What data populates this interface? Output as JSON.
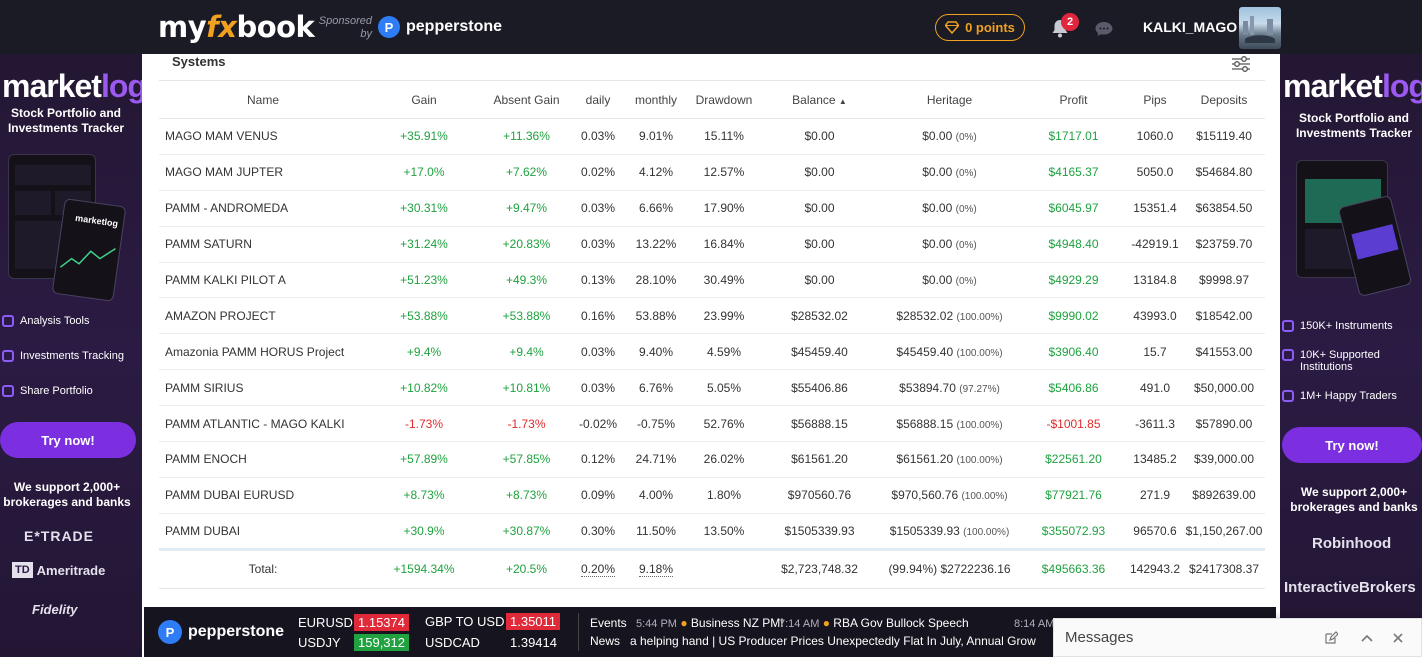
{
  "header": {
    "logo_pre": "my",
    "logo_fx": "fx",
    "logo_post": "book",
    "sponsored_line1": "Sponsored",
    "sponsored_line2": "by",
    "sponsor_name": "pepperstone",
    "sponsor_mark": "P",
    "points_label": "0 points",
    "notification_count": "2",
    "username": "KALKI_MAGO"
  },
  "left_ad": {
    "logo_main": "market",
    "logo_accent": "log",
    "tagline": "Stock Portfolio and Investments Tracker",
    "mock_label": "marketlog",
    "features": [
      "Analysis Tools",
      "Investments Tracking",
      "Share Portfolio"
    ],
    "cta": "Try now!",
    "support": "We support 2,000+ brokerages and banks",
    "brokers": [
      "E*TRADE",
      "Ameritrade",
      "Fidelity"
    ],
    "broker_badge": "TD"
  },
  "right_ad": {
    "logo_main": "market",
    "logo_accent": "log",
    "tagline": "Stock Portfolio and Investments Tracker",
    "features": [
      "150K+ Instruments",
      "10K+ Supported Institutions",
      "1M+ Happy Traders"
    ],
    "cta": "Try now!",
    "support": "We support 2,000+ brokerages and banks",
    "brokers": [
      "Robinhood",
      "InteractiveBrokers"
    ]
  },
  "systems": {
    "title": "Systems",
    "columns": [
      "Name",
      "Gain",
      "Absent Gain",
      "daily",
      "monthly",
      "Drawdown",
      "Balance",
      "Heritage",
      "Profit",
      "Pips",
      "Deposits"
    ],
    "sort_indicator": "▲",
    "rows": [
      {
        "name": "MAGO MAM VENUS",
        "gain": "+35.91%",
        "absent_gain": "+11.36%",
        "daily": "0.03%",
        "monthly": "9.01%",
        "drawdown": "15.11%",
        "balance": "$0.00",
        "heritage": "$0.00",
        "heritage_pct": "(0%)",
        "profit": "$1717.01",
        "pips": "1060.0",
        "deposits": "$15119.40",
        "neg": false
      },
      {
        "name": "MAGO MAM JUPTER",
        "gain": "+17.0%",
        "absent_gain": "+7.62%",
        "daily": "0.02%",
        "monthly": "4.12%",
        "drawdown": "12.57%",
        "balance": "$0.00",
        "heritage": "$0.00",
        "heritage_pct": "(0%)",
        "profit": "$4165.37",
        "pips": "5050.0",
        "deposits": "$54684.80",
        "neg": false
      },
      {
        "name": "PAMM - ANDROMEDA",
        "gain": "+30.31%",
        "absent_gain": "+9.47%",
        "daily": "0.03%",
        "monthly": "6.66%",
        "drawdown": "17.90%",
        "balance": "$0.00",
        "heritage": "$0.00",
        "heritage_pct": "(0%)",
        "profit": "$6045.97",
        "pips": "15351.4",
        "deposits": "$63854.50",
        "neg": false
      },
      {
        "name": "PAMM SATURN",
        "gain": "+31.24%",
        "absent_gain": "+20.83%",
        "daily": "0.03%",
        "monthly": "13.22%",
        "drawdown": "16.84%",
        "balance": "$0.00",
        "heritage": "$0.00",
        "heritage_pct": "(0%)",
        "profit": "$4948.40",
        "pips": "-42919.1",
        "deposits": "$23759.70",
        "neg": false
      },
      {
        "name": "PAMM KALKI PILOT A",
        "gain": "+51.23%",
        "absent_gain": "+49.3%",
        "daily": "0.13%",
        "monthly": "28.10%",
        "drawdown": "30.49%",
        "balance": "$0.00",
        "heritage": "$0.00",
        "heritage_pct": "(0%)",
        "profit": "$4929.29",
        "pips": "13184.8",
        "deposits": "$9998.97",
        "neg": false
      },
      {
        "name": "AMAZON PROJECT",
        "gain": "+53.88%",
        "absent_gain": "+53.88%",
        "daily": "0.16%",
        "monthly": "53.88%",
        "drawdown": "23.99%",
        "balance": "$28532.02",
        "heritage": "$28532.02",
        "heritage_pct": "(100.00%)",
        "profit": "$9990.02",
        "pips": "43993.0",
        "deposits": "$18542.00",
        "neg": false
      },
      {
        "name": "Amazonia PAMM HORUS Project",
        "gain": "+9.4%",
        "absent_gain": "+9.4%",
        "daily": "0.03%",
        "monthly": "9.40%",
        "drawdown": "4.59%",
        "balance": "$45459.40",
        "heritage": "$45459.40",
        "heritage_pct": "(100.00%)",
        "profit": "$3906.40",
        "pips": "15.7",
        "deposits": "$41553.00",
        "neg": false
      },
      {
        "name": "PAMM SIRIUS",
        "gain": "+10.82%",
        "absent_gain": "+10.81%",
        "daily": "0.03%",
        "monthly": "6.76%",
        "drawdown": "5.05%",
        "balance": "$55406.86",
        "heritage": "$53894.70",
        "heritage_pct": "(97.27%)",
        "profit": "$5406.86",
        "pips": "491.0",
        "deposits": "$50,000.00",
        "neg": false
      },
      {
        "name": "PAMM ATLANTIC - MAGO KALKI",
        "gain": "-1.73%",
        "absent_gain": "-1.73%",
        "daily": "-0.02%",
        "monthly": "-0.75%",
        "drawdown": "52.76%",
        "balance": "$56888.15",
        "heritage": "$56888.15",
        "heritage_pct": "(100.00%)",
        "profit": "-$1001.85",
        "pips": "-3611.3",
        "deposits": "$57890.00",
        "neg": true
      },
      {
        "name": "PAMM ENOCH",
        "gain": "+57.89%",
        "absent_gain": "+57.85%",
        "daily": "0.12%",
        "monthly": "24.71%",
        "drawdown": "26.02%",
        "balance": "$61561.20",
        "heritage": "$61561.20",
        "heritage_pct": "(100.00%)",
        "profit": "$22561.20",
        "pips": "13485.2",
        "deposits": "$39,000.00",
        "neg": false
      },
      {
        "name": "PAMM DUBAI EURUSD",
        "gain": "+8.73%",
        "absent_gain": "+8.73%",
        "daily": "0.09%",
        "monthly": "4.00%",
        "drawdown": "1.80%",
        "balance": "$970560.76",
        "heritage": "$970,560.76",
        "heritage_pct": "(100.00%)",
        "profit": "$77921.76",
        "pips": "271.9",
        "deposits": "$892639.00",
        "neg": false
      },
      {
        "name": "PAMM DUBAI",
        "gain": "+30.9%",
        "absent_gain": "+30.87%",
        "daily": "0.30%",
        "monthly": "11.50%",
        "drawdown": "13.50%",
        "balance": "$1505339.93",
        "heritage": "$1505339.93",
        "heritage_pct": "(100.00%)",
        "profit": "$355072.93",
        "pips": "96570.6",
        "deposits": "$1,150,267.00",
        "neg": false
      }
    ],
    "total": {
      "label": "Total:",
      "gain": "+1594.34%",
      "absent_gain": "+20.5%",
      "daily": "0.20%",
      "monthly": "9.18%",
      "drawdown": "",
      "balance": "$2,723,748.32",
      "heritage_pct": "(99.94%)",
      "heritage": "$2722236.16",
      "profit": "$495663.36",
      "pips": "142943.2",
      "deposits": "$2417308.37"
    }
  },
  "ticker": {
    "brand": "pepperstone",
    "brand_mark": "P",
    "pairs": [
      {
        "label": "EURUSD",
        "price": "1.15374",
        "state": "red"
      },
      {
        "label": "USDJY",
        "price": "159,312",
        "state": "green"
      },
      {
        "label": "GBP TO USD",
        "price": "1.35011",
        "state": "red"
      },
      {
        "label": "USDCAD",
        "price": "1.39414",
        "state": "none"
      }
    ],
    "events_label": "Events",
    "news_label": "News",
    "events": [
      {
        "time": "5:44 PM",
        "text": "Business NZ PMI"
      },
      {
        "time": "7:14 AM",
        "text": "RBA Gov Bullock Speech"
      },
      {
        "time": "8:14 AM",
        "text": ""
      }
    ],
    "news_text": "a helping hand   |   US Producer Prices Unexpectedly Flat In July, Annual Grow"
  },
  "messages": {
    "title": "Messages"
  }
}
